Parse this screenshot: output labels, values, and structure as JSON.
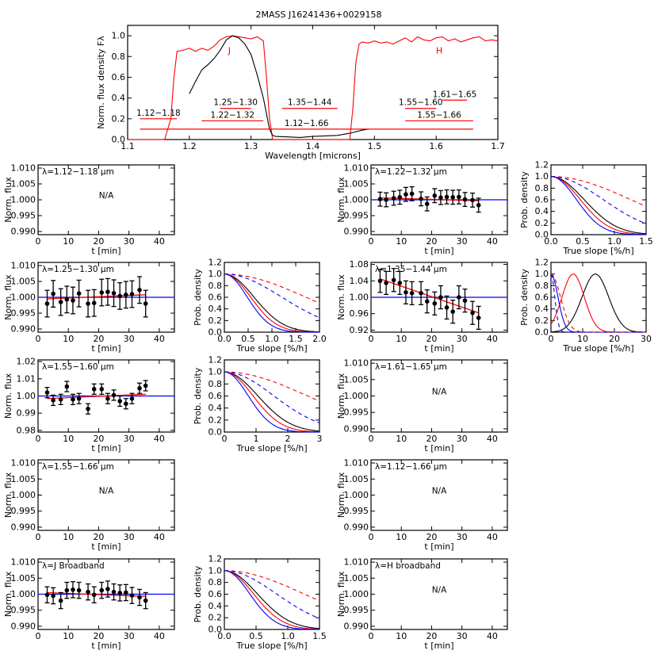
{
  "chart_data": [
    {
      "id": "spectrum",
      "type": "line",
      "title": "2MASS J16241436+0029158",
      "xlabel": "Wavelength [microns]",
      "ylabel": "Norm. flux density Fλ",
      "xlim": [
        1.1,
        1.7
      ],
      "ylim": [
        0.0,
        1.1
      ],
      "xticks": [
        "1.1",
        "1.2",
        "1.3",
        "1.4",
        "1.5",
        "1.6",
        "1.7"
      ],
      "yticks": [
        "0.0",
        "0.2",
        "0.4",
        "0.6",
        "0.8",
        "1.0"
      ],
      "band_labels": [
        {
          "text": "J",
          "x": 1.265,
          "y": 0.83,
          "color": "#ff0000"
        },
        {
          "text": "H",
          "x": 1.605,
          "y": 0.83,
          "color": "#ff0000"
        }
      ],
      "series": [
        {
          "color": "#ff0000",
          "x": [
            1.1,
            1.16,
            1.17,
            1.175,
            1.18,
            1.19,
            1.2,
            1.21,
            1.22,
            1.23,
            1.24,
            1.25,
            1.26,
            1.27,
            1.28,
            1.29,
            1.3,
            1.31,
            1.32,
            1.325,
            1.33,
            1.335,
            1.34,
            1.46,
            1.465,
            1.47,
            1.475,
            1.48,
            1.49,
            1.5,
            1.51,
            1.52,
            1.53,
            1.54,
            1.55,
            1.56,
            1.57,
            1.58,
            1.59,
            1.6,
            1.61,
            1.62,
            1.63,
            1.64,
            1.65,
            1.66,
            1.67,
            1.68,
            1.69,
            1.7
          ],
          "y": [
            0.0,
            0.0,
            0.2,
            0.6,
            0.85,
            0.86,
            0.88,
            0.85,
            0.88,
            0.86,
            0.9,
            0.96,
            0.99,
            1.0,
            0.99,
            0.98,
            0.97,
            0.99,
            0.95,
            0.6,
            0.2,
            0.0,
            0.0,
            0.0,
            0.3,
            0.75,
            0.92,
            0.94,
            0.93,
            0.95,
            0.93,
            0.94,
            0.92,
            0.95,
            0.98,
            0.94,
            0.99,
            0.96,
            0.95,
            0.98,
            0.99,
            0.95,
            0.97,
            0.94,
            0.96,
            0.98,
            0.99,
            0.95,
            0.96,
            0.95
          ]
        },
        {
          "color": "#000000",
          "x": [
            1.2,
            1.21,
            1.22,
            1.23,
            1.24,
            1.25,
            1.26,
            1.27,
            1.28,
            1.29,
            1.3,
            1.31,
            1.32,
            1.33,
            1.335,
            1.34,
            1.36,
            1.38,
            1.4,
            1.42,
            1.44,
            1.46,
            1.48,
            1.49
          ],
          "y": [
            0.44,
            0.56,
            0.67,
            0.72,
            0.78,
            0.86,
            0.96,
            1.0,
            0.98,
            0.92,
            0.82,
            0.62,
            0.4,
            0.1,
            0.04,
            0.03,
            0.025,
            0.02,
            0.03,
            0.035,
            0.04,
            0.06,
            0.09,
            0.1
          ]
        }
      ],
      "ranges": [
        {
          "label": "1.12−1.18",
          "x0": 1.12,
          "x1": 1.18,
          "y": 0.2
        },
        {
          "label": "1.25−1.30",
          "x0": 1.25,
          "x1": 1.3,
          "y": 0.3
        },
        {
          "label": "1.22−1.32",
          "x0": 1.22,
          "x1": 1.32,
          "y": 0.18
        },
        {
          "label": "1.35−1.44",
          "x0": 1.35,
          "x1": 1.44,
          "y": 0.3
        },
        {
          "label": "1.12−1.66",
          "x0": 1.12,
          "x1": 1.66,
          "y": 0.1
        },
        {
          "label": "1.55−1.60",
          "x0": 1.55,
          "x1": 1.6,
          "y": 0.3
        },
        {
          "label": "1.61−1.65",
          "x0": 1.61,
          "x1": 1.65,
          "y": 0.38
        },
        {
          "label": "1.55−1.66",
          "x0": 1.55,
          "x1": 1.66,
          "y": 0.18
        }
      ]
    },
    {
      "id": "lc-112-118",
      "type": "scatter",
      "label": "λ=1.12−1.18 μm",
      "status": "N/A",
      "xlabel": "t [min]",
      "ylabel": "Norm. flux",
      "xlim": [
        0,
        45
      ],
      "xticks": [
        "0",
        "10",
        "20",
        "30",
        "40"
      ],
      "ylim": [
        0.989,
        1.011
      ],
      "yticks": [
        "0.990",
        "0.995",
        "1.000",
        "1.005",
        "1.010"
      ]
    },
    {
      "id": "lc-122-132",
      "type": "scatter",
      "label": "λ=1.22−1.32 μm",
      "xlabel": "t [min]",
      "ylabel": "Norm. flux",
      "xlim": [
        0,
        45
      ],
      "xticks": [
        "0",
        "10",
        "20",
        "30",
        "40"
      ],
      "ylim": [
        0.989,
        1.011
      ],
      "yticks": [
        "0.990",
        "0.995",
        "1.000",
        "1.005",
        "1.010"
      ],
      "x": [
        3,
        5,
        7.5,
        9.5,
        11.5,
        13.5,
        16.5,
        18.5,
        21,
        23,
        25,
        27,
        29,
        31,
        33.5,
        35.5
      ],
      "y": [
        1.0002,
        1.0,
        1.0005,
        1.0008,
        1.0017,
        1.0019,
        1.0003,
        0.9987,
        1.0013,
        1.0007,
        1.0009,
        1.0008,
        1.0009,
        1.0001,
        0.9999,
        0.9983
      ],
      "err": 0.0022,
      "fit": [
        1.0006,
        0.9997
      ]
    },
    {
      "id": "pd-122-132",
      "type": "line",
      "xlabel": "True slope [%/h]",
      "ylabel": "Prob. density",
      "xlim": [
        0,
        1.5
      ],
      "xticks": [
        "0.0",
        "0.5",
        "1.0",
        "1.5"
      ],
      "ylim": [
        0,
        1.2
      ],
      "yticks": [
        "0.0",
        "0.2",
        "0.4",
        "0.6",
        "0.8",
        "1.0",
        "1.2"
      ],
      "curves": [
        {
          "color": "#000000",
          "kind": "gauss",
          "s": 0.52
        },
        {
          "color": "#ff0000",
          "kind": "gauss",
          "s": 0.46
        },
        {
          "color": "#0000ff",
          "kind": "gauss",
          "s": 0.4
        },
        {
          "color": "#ff0000",
          "kind": "dash",
          "s": 1.25
        },
        {
          "color": "#0000ff",
          "kind": "dash",
          "s": 0.82
        }
      ]
    },
    {
      "id": "lc-125-130",
      "type": "scatter",
      "label": "λ=1.25−1.30 μm",
      "xlabel": "t [min]",
      "ylabel": "Norm. flux",
      "xlim": [
        0,
        45
      ],
      "xticks": [
        "0",
        "10",
        "20",
        "30",
        "40"
      ],
      "ylim": [
        0.989,
        1.011
      ],
      "yticks": [
        "0.990",
        "0.995",
        "1.000",
        "1.005",
        "1.010"
      ],
      "x": [
        3,
        5,
        7.5,
        9.5,
        11.5,
        13.5,
        16.5,
        18.5,
        21,
        23,
        25,
        27,
        29,
        31,
        33.5,
        35.5
      ],
      "y": [
        0.998,
        1.0011,
        0.9985,
        0.9993,
        0.999,
        1.0012,
        0.998,
        0.9982,
        1.0015,
        1.0017,
        1.0013,
        1.0004,
        1.0008,
        1.001,
        1.0023,
        0.998
      ],
      "err": 0.0042,
      "fit": [
        0.9995,
        1.0008
      ]
    },
    {
      "id": "pd-125-130",
      "type": "line",
      "xlabel": "True slope [%/h]",
      "ylabel": "Prob. density",
      "xlim": [
        0,
        2
      ],
      "xticks": [
        "0.0",
        "0.5",
        "1.0",
        "1.5",
        "2.0"
      ],
      "ylim": [
        0,
        1.2
      ],
      "yticks": [
        "0.0",
        "0.2",
        "0.4",
        "0.6",
        "0.8",
        "1.0",
        "1.2"
      ],
      "curves": [
        {
          "color": "#000000",
          "kind": "gauss",
          "s": 0.62
        },
        {
          "color": "#ff0000",
          "kind": "gauss",
          "s": 0.55
        },
        {
          "color": "#0000ff",
          "kind": "gauss",
          "s": 0.48
        },
        {
          "color": "#ff0000",
          "kind": "dash",
          "s": 1.7
        },
        {
          "color": "#0000ff",
          "kind": "dash",
          "s": 1.2
        }
      ]
    },
    {
      "id": "lc-135-144",
      "type": "scatter",
      "label": "λ=1.35−1.44 μm",
      "xlabel": "t [min]",
      "ylabel": "Norm. flux",
      "xlim": [
        0,
        45
      ],
      "xticks": [
        "0",
        "10",
        "20",
        "30",
        "40"
      ],
      "ylim": [
        0.915,
        1.085
      ],
      "yticks": [
        "0.92",
        "0.96",
        "1.00",
        "1.04",
        "1.08"
      ],
      "x": [
        3,
        5,
        7.5,
        9.5,
        11.5,
        13.5,
        16.5,
        18.5,
        21,
        23,
        25,
        27,
        29,
        31,
        33.5,
        35.5
      ],
      "y": [
        1.04,
        1.035,
        1.042,
        1.035,
        1.012,
        1.01,
        1.01,
        0.99,
        0.985,
        1.0,
        0.975,
        0.965,
        1.0,
        0.992,
        0.962,
        0.95
      ],
      "err": 0.028,
      "fit": [
        1.045,
        0.962
      ]
    },
    {
      "id": "pd-135-144",
      "type": "line",
      "xlabel": "True slope [%/h]",
      "ylabel": "Prob. density",
      "xlim": [
        0,
        30
      ],
      "xticks": [
        "0",
        "10",
        "20",
        "30"
      ],
      "ylim": [
        0,
        1.2
      ],
      "yticks": [
        "0.0",
        "0.2",
        "0.4",
        "0.6",
        "0.8",
        "1.0",
        "1.2"
      ],
      "curves": [
        {
          "color": "#000000",
          "kind": "peak",
          "mu": 14,
          "s": 4.2
        },
        {
          "color": "#ff0000",
          "kind": "peak",
          "mu": 7,
          "s": 3.5
        },
        {
          "color": "#0000ff",
          "kind": "gauss",
          "s": 2.2
        },
        {
          "color": "#ff0000",
          "kind": "dash",
          "s": 3.0
        },
        {
          "color": "#0000ff",
          "kind": "dash",
          "s": 1.2
        }
      ]
    },
    {
      "id": "lc-155-160",
      "type": "scatter",
      "label": "λ=1.55−1.60 μm",
      "xlabel": "t [min]",
      "ylabel": "Norm. flux",
      "xlim": [
        0,
        45
      ],
      "xticks": [
        "0",
        "10",
        "20",
        "30",
        "40"
      ],
      "ylim": [
        0.979,
        1.021
      ],
      "yticks": [
        "0.98",
        "0.99",
        "1.00",
        "1.01",
        "1.02"
      ],
      "x": [
        3,
        5,
        7.5,
        9.5,
        11.5,
        13.5,
        16.5,
        18.5,
        21,
        23,
        25,
        27,
        29,
        31,
        33.5,
        35.5
      ],
      "y": [
        1.002,
        0.9975,
        0.998,
        1.0055,
        0.998,
        0.9985,
        0.9925,
        1.004,
        1.004,
        0.9985,
        1.0005,
        0.997,
        0.9955,
        0.9985,
        1.0045,
        1.006
      ],
      "err": 0.003,
      "fit": [
        0.9985,
        1.001
      ]
    },
    {
      "id": "pd-155-160",
      "type": "line",
      "xlabel": "True slope [%/h]",
      "ylabel": "Prob. density",
      "xlim": [
        0,
        3
      ],
      "xticks": [
        "0",
        "1",
        "2",
        "3"
      ],
      "ylim": [
        0,
        1.2
      ],
      "yticks": [
        "0.0",
        "0.2",
        "0.4",
        "0.6",
        "0.8",
        "1.0",
        "1.2"
      ],
      "curves": [
        {
          "color": "#000000",
          "kind": "gauss",
          "s": 1.05
        },
        {
          "color": "#ff0000",
          "kind": "gauss",
          "s": 0.9
        },
        {
          "color": "#0000ff",
          "kind": "gauss",
          "s": 0.75
        },
        {
          "color": "#ff0000",
          "kind": "dash",
          "s": 2.6
        },
        {
          "color": "#0000ff",
          "kind": "dash",
          "s": 1.55
        }
      ]
    },
    {
      "id": "lc-161-165",
      "type": "scatter",
      "label": "λ=1.61−1.65 μm",
      "status": "N/A",
      "xlabel": "t [min]",
      "ylabel": "Norm. flux",
      "xlim": [
        0,
        45
      ],
      "xticks": [
        "0",
        "10",
        "20",
        "30",
        "40"
      ],
      "ylim": [
        0.989,
        1.011
      ],
      "yticks": [
        "0.990",
        "0.995",
        "1.000",
        "1.005",
        "1.010"
      ]
    },
    {
      "id": "lc-155-166",
      "type": "scatter",
      "label": "λ=1.55−1.66 μm",
      "status": "N/A",
      "xlabel": "t [min]",
      "ylabel": "Norm. flux",
      "xlim": [
        0,
        45
      ],
      "xticks": [
        "0",
        "10",
        "20",
        "30",
        "40"
      ],
      "ylim": [
        0.989,
        1.011
      ],
      "yticks": [
        "0.990",
        "0.995",
        "1.000",
        "1.005",
        "1.010"
      ]
    },
    {
      "id": "lc-112-166",
      "type": "scatter",
      "label": "λ=1.12−1.66 μm",
      "status": "N/A",
      "xlabel": "t [min]",
      "ylabel": "Norm. flux",
      "xlim": [
        0,
        45
      ],
      "xticks": [
        "0",
        "10",
        "20",
        "30",
        "40"
      ],
      "ylim": [
        0.989,
        1.011
      ],
      "yticks": [
        "0.990",
        "0.995",
        "1.000",
        "1.005",
        "1.010"
      ]
    },
    {
      "id": "lc-j-broadband",
      "type": "scatter",
      "label": "λ=J Broadband",
      "xlabel": "t [min]",
      "ylabel": "Norm. flux",
      "xlim": [
        0,
        45
      ],
      "xticks": [
        "0",
        "10",
        "20",
        "30",
        "40"
      ],
      "ylim": [
        0.989,
        1.011
      ],
      "yticks": [
        "0.990",
        "0.995",
        "1.000",
        "1.005",
        "1.010"
      ],
      "x": [
        3,
        5,
        7.5,
        9.5,
        11.5,
        13.5,
        16.5,
        18.5,
        21,
        23,
        25,
        27,
        29,
        31,
        33.5,
        35.5
      ],
      "y": [
        0.9998,
        0.9995,
        0.998,
        1.0012,
        1.0014,
        1.0012,
        1.0007,
        0.9998,
        1.0012,
        1.0016,
        1.0007,
        1.0004,
        1.0005,
        0.9996,
        0.999,
        0.998
      ],
      "err": 0.0025,
      "fit": [
        1.0005,
        0.9993
      ]
    },
    {
      "id": "pd-j-broadband",
      "type": "line",
      "xlabel": "True slope [%/h]",
      "ylabel": "Prob. density",
      "xlim": [
        0,
        1.5
      ],
      "xticks": [
        "0.0",
        "0.5",
        "1.0",
        "1.5"
      ],
      "ylim": [
        0,
        1.2
      ],
      "yticks": [
        "0.0",
        "0.2",
        "0.4",
        "0.6",
        "0.8",
        "1.0",
        "1.2"
      ],
      "curves": [
        {
          "color": "#000000",
          "kind": "gauss",
          "s": 0.52
        },
        {
          "color": "#ff0000",
          "kind": "gauss",
          "s": 0.46
        },
        {
          "color": "#0000ff",
          "kind": "gauss",
          "s": 0.4
        },
        {
          "color": "#ff0000",
          "kind": "dash",
          "s": 1.25
        },
        {
          "color": "#0000ff",
          "kind": "dash",
          "s": 0.82
        }
      ]
    },
    {
      "id": "lc-h-broadband",
      "type": "scatter",
      "label": "λ=H broadband",
      "status": "N/A",
      "xlabel": "t [min]",
      "ylabel": "Norm. flux",
      "xlim": [
        0,
        45
      ],
      "xticks": [
        "0",
        "10",
        "20",
        "30",
        "40"
      ],
      "ylim": [
        0.989,
        1.011
      ],
      "yticks": [
        "0.990",
        "0.995",
        "1.000",
        "1.005",
        "1.010"
      ]
    }
  ]
}
